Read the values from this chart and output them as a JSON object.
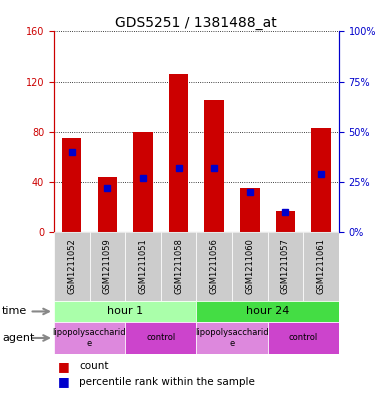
{
  "title": "GDS5251 / 1381488_at",
  "samples": [
    "GSM1211052",
    "GSM1211059",
    "GSM1211051",
    "GSM1211058",
    "GSM1211056",
    "GSM1211060",
    "GSM1211057",
    "GSM1211061"
  ],
  "counts": [
    75,
    44,
    80,
    126,
    105,
    35,
    17,
    83
  ],
  "percentiles": [
    40,
    22,
    27,
    32,
    32,
    20,
    10,
    29
  ],
  "left_ylim": [
    0,
    160
  ],
  "right_ylim": [
    0,
    100
  ],
  "left_yticks": [
    0,
    40,
    80,
    120,
    160
  ],
  "right_yticks": [
    0,
    25,
    50,
    75,
    100
  ],
  "bar_color": "#cc0000",
  "percentile_color": "#0000cc",
  "time_groups": [
    {
      "label": "hour 1",
      "cols": [
        0,
        1,
        2,
        3
      ],
      "color": "#aaffaa"
    },
    {
      "label": "hour 24",
      "cols": [
        4,
        5,
        6,
        7
      ],
      "color": "#44dd44"
    }
  ],
  "agent_groups": [
    {
      "label": "lipopolysaccharid\ne",
      "cols": [
        0,
        1
      ],
      "color": "#dd88dd"
    },
    {
      "label": "control",
      "cols": [
        2,
        3
      ],
      "color": "#cc44cc"
    },
    {
      "label": "lipopolysaccharid\ne",
      "cols": [
        4,
        5
      ],
      "color": "#dd88dd"
    },
    {
      "label": "control",
      "cols": [
        6,
        7
      ],
      "color": "#cc44cc"
    }
  ],
  "sample_bg": "#cccccc",
  "bg_color": "#ffffff",
  "time_label": "time",
  "agent_label": "agent",
  "legend_count_label": "count",
  "legend_percentile_label": "percentile rank within the sample",
  "title_fontsize": 10,
  "tick_fontsize": 7,
  "label_fontsize": 8,
  "sample_fontsize": 6
}
